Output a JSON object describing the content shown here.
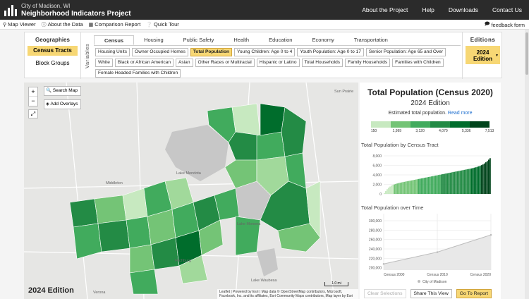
{
  "header": {
    "brand_line1": "City of Madison, WI",
    "brand_line2": "Neighborhood Indicators Project",
    "nav": [
      "About the Project",
      "Help",
      "Downloads",
      "Contact Us"
    ]
  },
  "subbar": {
    "items": [
      {
        "icon": "map-pin-icon",
        "label": "Map Viewer"
      },
      {
        "icon": "info-icon",
        "label": "About the Data"
      },
      {
        "icon": "table-icon",
        "label": "Comparison Report"
      },
      {
        "icon": "question-icon",
        "label": "Quick Tour"
      }
    ],
    "feedback": "feedback form"
  },
  "geographies": {
    "title": "Geographies",
    "options": [
      "Census Tracts",
      "Block Groups"
    ],
    "selected": "Census Tracts"
  },
  "variables": {
    "label": "Variables",
    "tabs": [
      "Census",
      "Housing",
      "Public Safety",
      "Health",
      "Education",
      "Economy",
      "Transportation"
    ],
    "selected_tab": "Census",
    "chips": [
      "Housing Units",
      "Owner Occupied Homes",
      "Total Population",
      "Young Children: Age 0 to 4",
      "Youth Population: Age 0 to 17",
      "Senior Population: Age 65 and Over",
      "White",
      "Black or African American",
      "Asian",
      "Other Races or Multiracial",
      "Hispanic or Latino",
      "Total Households",
      "Family Households",
      "Families with Children",
      "Female Headed Families with Children"
    ],
    "selected_chip": "Total Population"
  },
  "editions": {
    "title": "Editions",
    "line1": "2024",
    "line2": "Edition"
  },
  "map": {
    "search_label": "Search Map",
    "overlays_label": "Add Overlays",
    "zoom_in": "+",
    "zoom_out": "−",
    "edition_label": "2024 Edition",
    "scale_label": "1.0 mi",
    "attribution": "Leaflet | Powered by Esri | Map data © OpenStreetMap contributors, Microsoft, Facebook, Inc. and its affiliates, Esri Community Maps contributors, Map layer by Esri",
    "places": [
      "Sun Prairie",
      "Middleton",
      "Fitchburg",
      "Verona",
      "Lake Mendota",
      "Lake Monona",
      "Lake Waubesa"
    ]
  },
  "panel": {
    "title": "Total Population (Census 2020)",
    "subtitle": "2024 Edition",
    "description": "Estimated total population.",
    "read_more": "Read more",
    "legend_colors": [
      "#c7e9c0",
      "#74c476",
      "#41ab5d",
      "#238b45",
      "#006d2c",
      "#00441b"
    ],
    "legend_ticks": [
      "150",
      "1,999",
      "3,120",
      "4,070",
      "5,336",
      "7,513"
    ],
    "bar_title": "Total Population by Census Tract",
    "line_title": "Total Population over Time",
    "legend_item": "City of Madison",
    "buttons": {
      "clear": "Clear Selections",
      "share": "Share This View",
      "report": "Go To Report"
    }
  },
  "chart_data": [
    {
      "type": "bar",
      "title": "Total Population by Census Tract",
      "ylim": [
        0,
        8000
      ],
      "yticks": [
        "0",
        "2,000",
        "4,000",
        "6,000",
        "8,000"
      ],
      "values": [
        150,
        600,
        1000,
        1300,
        1550,
        1750,
        1900,
        2000,
        2100,
        2200,
        2280,
        2350,
        2420,
        2480,
        2540,
        2600,
        2660,
        2720,
        2780,
        2840,
        2900,
        2960,
        3020,
        3080,
        3140,
        3200,
        3260,
        3320,
        3380,
        3440,
        3500,
        3560,
        3620,
        3680,
        3740,
        3800,
        3860,
        3920,
        3980,
        4040,
        4100,
        4160,
        4220,
        4280,
        4340,
        4400,
        4460,
        4520,
        4580,
        4640,
        4700,
        4760,
        4820,
        4880,
        4940,
        5000,
        5060,
        5120,
        5180,
        5240,
        5300,
        5360,
        5440,
        5520,
        5600,
        5700,
        5800,
        5900,
        6050,
        6200,
        6400,
        6650,
        6900,
        7200,
        7513
      ]
    },
    {
      "type": "line",
      "title": "Total Population over Time",
      "categories": [
        "Census 2000",
        "Census 2010",
        "Census 2020"
      ],
      "series": [
        {
          "name": "City of Madison",
          "values": [
            208054,
            233209,
            269840
          ]
        }
      ],
      "ylim": [
        195000,
        315000
      ],
      "yticks": [
        "200,000",
        "220,000",
        "240,000",
        "260,000",
        "280,000",
        "300,000"
      ]
    }
  ]
}
